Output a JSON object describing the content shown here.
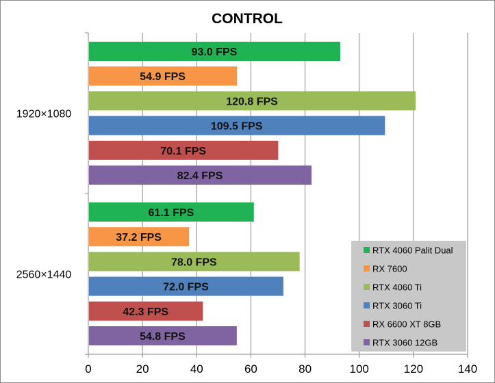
{
  "chart_data": {
    "type": "bar",
    "orientation": "horizontal",
    "title": "CONTROL",
    "xlabel": "",
    "ylabel": "",
    "xlim": [
      0,
      140
    ],
    "xticks": [
      0,
      20,
      40,
      60,
      80,
      100,
      120,
      140
    ],
    "grid": "vertical",
    "legend_position": "bottom-right",
    "categories": [
      "1920×1080",
      "2560×1440"
    ],
    "series": [
      {
        "name": "RTX 4060 Palit Dual",
        "color": "#1fb354",
        "values": [
          93.0,
          61.1
        ],
        "labels": [
          "93.0 FPS",
          "61.1 FPS"
        ]
      },
      {
        "name": "RX 7600",
        "color": "#f79646",
        "values": [
          54.9,
          37.2
        ],
        "labels": [
          "54.9 FPS",
          "37.2 FPS"
        ]
      },
      {
        "name": "RTX 4060 Ti",
        "color": "#9bbb59",
        "values": [
          120.8,
          78.0
        ],
        "labels": [
          "120.8 FPS",
          "78.0 FPS"
        ]
      },
      {
        "name": "RTX 3060 Ti",
        "color": "#4f81bd",
        "values": [
          109.5,
          72.0
        ],
        "labels": [
          "109.5 FPS",
          "72.0 FPS"
        ]
      },
      {
        "name": "RX 6600 XT 8GB",
        "color": "#c0504d",
        "values": [
          70.1,
          42.3
        ],
        "labels": [
          "70.1 FPS",
          "42.3 FPS"
        ]
      },
      {
        "name": "RTX 3060 12GB",
        "color": "#8064a2",
        "values": [
          82.4,
          54.8
        ],
        "labels": [
          "82.4 FPS",
          "54.8 FPS"
        ]
      }
    ]
  }
}
